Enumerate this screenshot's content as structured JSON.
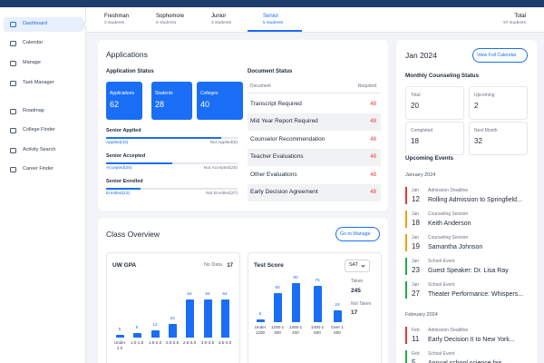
{
  "sidebar": {
    "items": [
      "Dashboard",
      "Calendar",
      "Manage",
      "Task Manager",
      "Roadmap",
      "College Finder",
      "Activity Search",
      "Career Finder"
    ]
  },
  "tabs": [
    {
      "name": "Freshman",
      "count": "2 students"
    },
    {
      "name": "Sophomore",
      "count": "5 students"
    },
    {
      "name": "Junior",
      "count": "3 students"
    },
    {
      "name": "Senior",
      "count": "5 students"
    }
  ],
  "total": {
    "label": "Total",
    "count": "87 students"
  },
  "applications": {
    "title": "Applications",
    "status_title": "Application Status",
    "stats": [
      {
        "label": "Applications",
        "value": 62
      },
      {
        "label": "Students",
        "value": 28
      },
      {
        "label": "Colleges",
        "value": 40
      }
    ],
    "progress": [
      {
        "title": "Senior Applied",
        "done": 42,
        "done_label": "Applied(42)",
        "rest": 6,
        "rest_label": "Not Applied(6)"
      },
      {
        "title": "Senior Accepted",
        "done": 25,
        "done_label": "Accepted(25)",
        "rest": 25,
        "rest_label": "Not Accepted(25)"
      },
      {
        "title": "Senior Enrolled",
        "done": 13,
        "done_label": "Enrolled(13)",
        "rest": 37,
        "rest_label": "Not Enrolled(37)"
      }
    ]
  },
  "documents": {
    "title": "Document Status",
    "col1": "Document",
    "col2": "Required",
    "rows": [
      [
        "Transcript Required",
        48
      ],
      [
        "Mid Year Report Required",
        48
      ],
      [
        "Counselor Recommendation",
        48
      ],
      [
        "Teacher Evaluations",
        48
      ],
      [
        "Other Evaluations",
        48
      ],
      [
        "Early Decision Agreement",
        48
      ]
    ]
  },
  "class_overview": {
    "title": "Class Overview",
    "button": "Go to Manage",
    "no_data_label": "No Data",
    "no_data": 17,
    "select": "SAT",
    "taken_label": "Taken",
    "taken": 245,
    "not_taken_label": "Not Taken",
    "not_taken": 17
  },
  "chart_data": [
    {
      "type": "bar",
      "title": "UW GPA",
      "categories": [
        "Under 1.0",
        "1.0-1.5",
        "1.5-2.0",
        "2.0-2.5",
        "2.5-3.0",
        "3.0-3.5",
        "3.5-4.0"
      ],
      "values": [
        5,
        8,
        12,
        23,
        64,
        64,
        64
      ],
      "ylim": [
        0,
        70
      ],
      "color": "#1a6ef5"
    },
    {
      "type": "bar",
      "title": "Test Score",
      "categories": [
        "Under 1200",
        "1200-1300",
        "1300-1400",
        "1400-1500",
        "Over 1500"
      ],
      "values": [
        5,
        60,
        80,
        75,
        24
      ],
      "ylim": [
        0,
        90
      ],
      "color": "#1a6ef5"
    }
  ],
  "calendar": {
    "month": "Jan 2024",
    "button": "View Full Calendar",
    "status_title": "Monthly Counseling Status",
    "stats": [
      {
        "label": "Total",
        "value": 20
      },
      {
        "label": "Upcoming",
        "value": 2
      },
      {
        "label": "Completed",
        "value": 18
      },
      {
        "label": "Next Month",
        "value": 32
      }
    ],
    "events_title": "Upcoming Events",
    "groups": [
      {
        "month": "January 2024",
        "events": [
          {
            "mon": "Jan",
            "day": 12,
            "type": "Admission Deadline",
            "title": "Rolling Admission to Springfield...",
            "color": "#e53935"
          },
          {
            "mon": "Jan",
            "day": 18,
            "type": "Counseling Session",
            "title": "Keith Anderson",
            "color": "#f59e0b"
          },
          {
            "mon": "Jan",
            "day": 19,
            "type": "Counseling Session",
            "title": "Samantha Johnson",
            "color": "#f59e0b"
          },
          {
            "mon": "Jan",
            "day": 23,
            "type": "School Event",
            "title": "Guest Speaker: Dr. Lisa Ray",
            "color": "#22a84a"
          },
          {
            "mon": "Jan",
            "day": 27,
            "type": "School Event",
            "title": "Theater Performance: Whispers...",
            "color": "#22a84a"
          }
        ]
      },
      {
        "month": "February 2024",
        "events": [
          {
            "mon": "Feb",
            "day": 11,
            "type": "Admission Deadline",
            "title": "Early Decision II to New York...",
            "color": "#e53935"
          },
          {
            "mon": "Feb",
            "day": 5,
            "type": "School Event",
            "title": "Annual school science fair",
            "color": "#22a84a"
          }
        ]
      }
    ]
  }
}
